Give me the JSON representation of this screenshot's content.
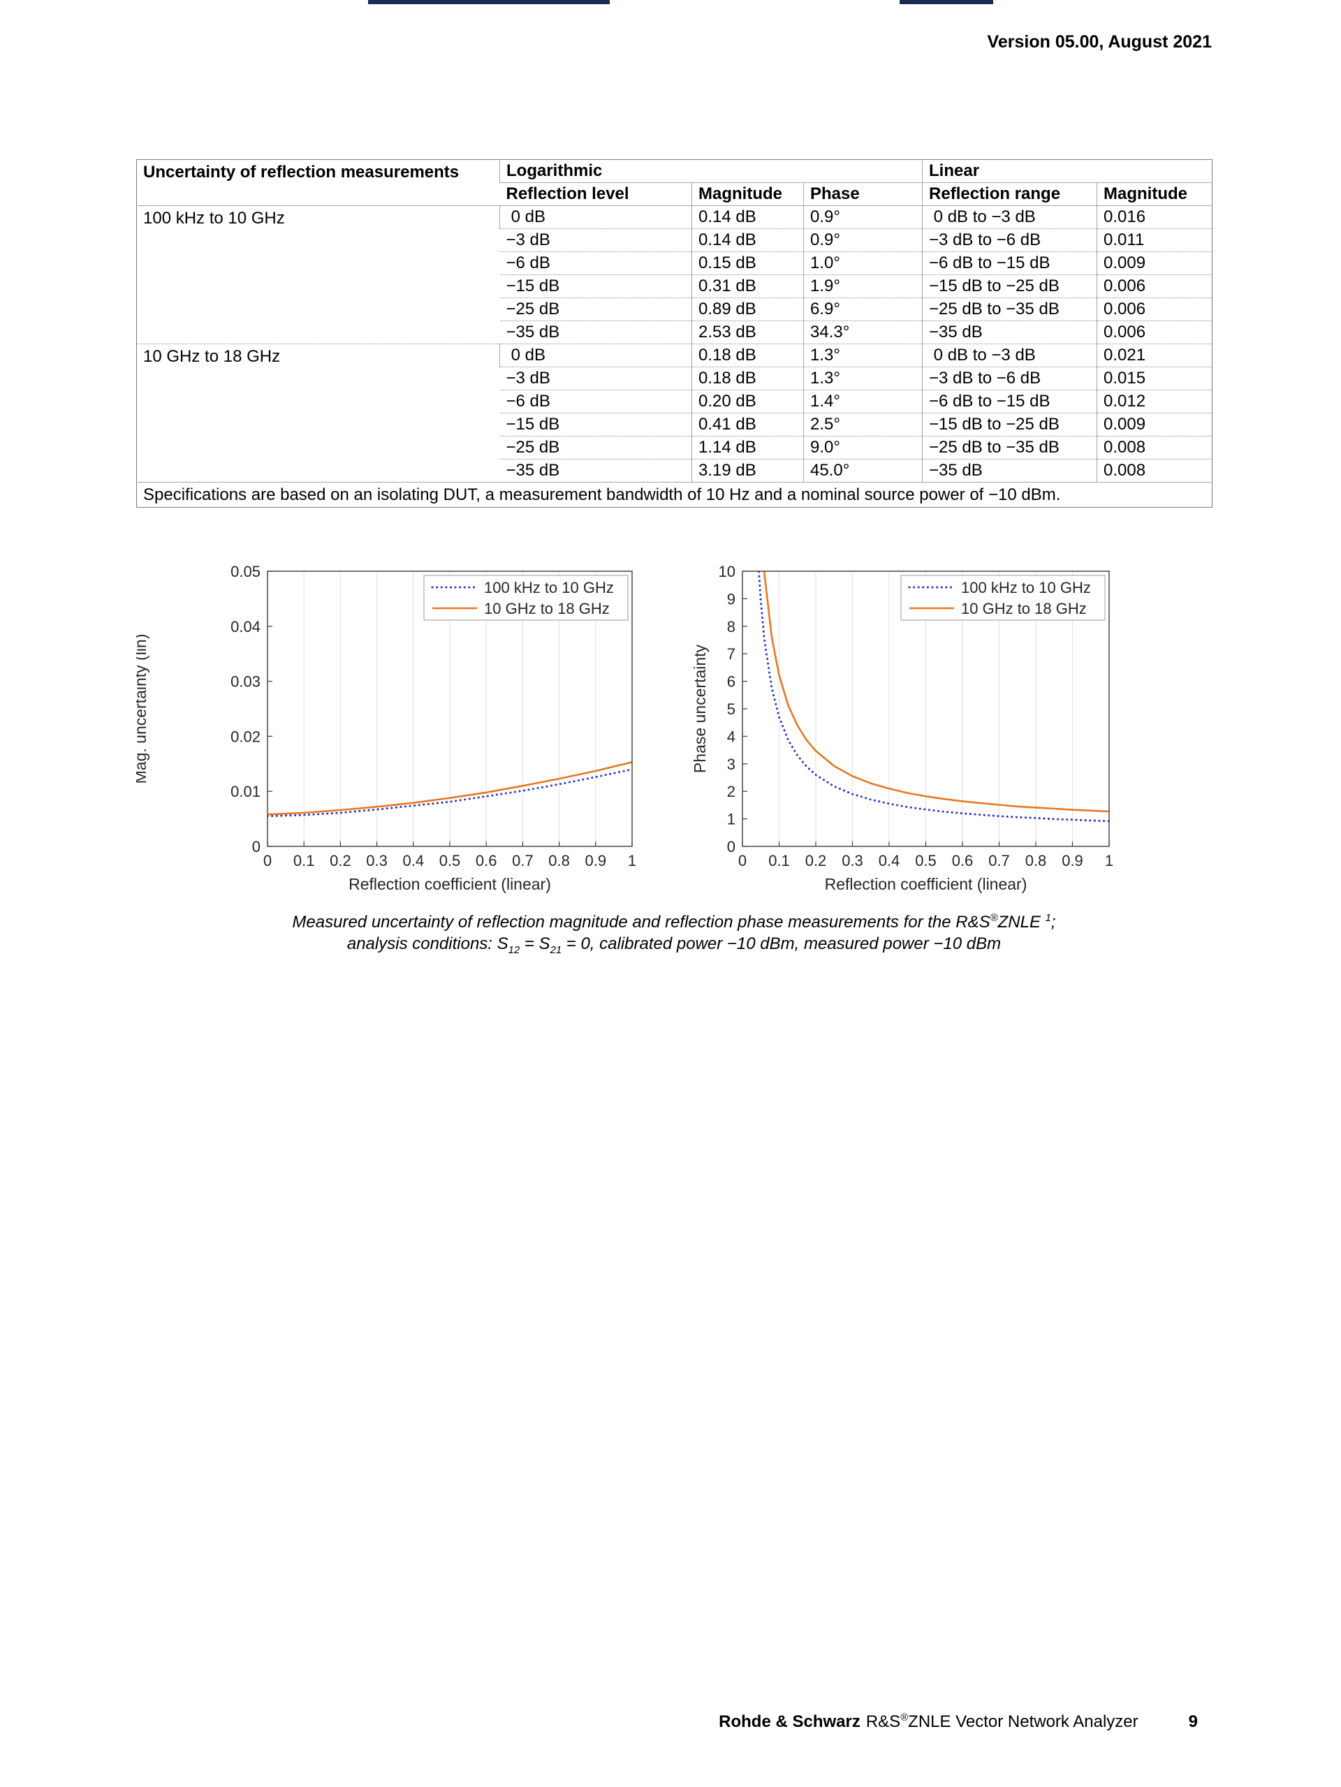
{
  "page": {
    "version_line": "Version 05.00, August 2021",
    "header_bar_color": "#1b2a52",
    "footer": {
      "brand": "Rohde & Schwarz",
      "product_prefix": "R&S",
      "registered_mark": "®",
      "product_suffix": "ZNLE Vector Network Analyzer",
      "page_number": "9"
    }
  },
  "table": {
    "title": "Uncertainty of reflection measurements",
    "section_logarithmic": "Logarithmic",
    "section_linear": "Linear",
    "columns": [
      "Reflection level",
      "Magnitude",
      "Phase",
      "Reflection range",
      "Magnitude"
    ],
    "groups": [
      {
        "label": "100 kHz to 10 GHz",
        "rows": [
          [
            " 0 dB",
            "0.14 dB",
            "0.9°",
            " 0 dB to −3 dB",
            "0.016"
          ],
          [
            "−3 dB",
            "0.14 dB",
            "0.9°",
            "−3 dB to −6 dB",
            "0.011"
          ],
          [
            "−6 dB",
            "0.15 dB",
            "1.0°",
            "−6 dB to −15 dB",
            "0.009"
          ],
          [
            "−15 dB",
            "0.31 dB",
            "1.9°",
            "−15 dB to −25 dB",
            "0.006"
          ],
          [
            "−25 dB",
            "0.89 dB",
            "6.9°",
            "−25 dB to −35 dB",
            "0.006"
          ],
          [
            "−35 dB",
            "2.53 dB",
            "34.3°",
            "−35 dB",
            "0.006"
          ]
        ]
      },
      {
        "label": "10 GHz to 18 GHz",
        "rows": [
          [
            " 0 dB",
            "0.18 dB",
            "1.3°",
            " 0 dB to −3 dB",
            "0.021"
          ],
          [
            "−3 dB",
            "0.18 dB",
            "1.3°",
            "−3 dB to −6 dB",
            "0.015"
          ],
          [
            "−6 dB",
            "0.20 dB",
            "1.4°",
            "−6 dB to −15 dB",
            "0.012"
          ],
          [
            "−15 dB",
            "0.41 dB",
            "2.5°",
            "−15 dB to −25 dB",
            "0.009"
          ],
          [
            "−25 dB",
            "1.14 dB",
            "9.0°",
            "−25 dB to −35 dB",
            "0.008"
          ],
          [
            "−35 dB",
            "3.19 dB",
            "45.0°",
            "−35 dB",
            "0.008"
          ]
        ]
      }
    ],
    "footnote": "Specifications are based on an isolating DUT, a measurement bandwidth of 10 Hz and a nominal source power of −10 dBm."
  },
  "caption": {
    "l1a": "Measured uncertainty of reflection magnitude and reflection phase measurements for the R&S",
    "l1_reg": "®",
    "l1b": "ZNLE ",
    "l1_sup": "1",
    "l1c": ";",
    "l2a": "analysis conditions: S",
    "l2_sub1": "12",
    "l2b": " = S",
    "l2_sub2": "21",
    "l2c": " = 0, calibrated power −10 dBm, measured power −10 dBm"
  },
  "chart_data": [
    {
      "type": "line",
      "title": "",
      "xlabel": "Reflection coefficient (linear)",
      "ylabel": "Mag. uncertainty (lin)",
      "xlim": [
        0,
        1
      ],
      "ylim": [
        0,
        0.05
      ],
      "xticks": [
        0,
        0.1,
        0.2,
        0.3,
        0.4,
        0.5,
        0.6,
        0.7,
        0.8,
        0.9,
        1
      ],
      "xtick_labels": [
        "0",
        "0.1",
        "0.2",
        "0.3",
        "0.4",
        "0.5",
        "0.6",
        "0.7",
        "0.8",
        "0.9",
        "1"
      ],
      "yticks": [
        0,
        0.01,
        0.02,
        0.03,
        0.04,
        0.05
      ],
      "ytick_labels": [
        "0",
        "0.01",
        "0.02",
        "0.03",
        "0.04",
        "0.05"
      ],
      "grid": "vertical",
      "legend_position": "top-right",
      "series": [
        {
          "name": "100 kHz to 10 GHz",
          "color": "#2430c8",
          "line_style": "dotted",
          "x": [
            0,
            0.1,
            0.2,
            0.3,
            0.4,
            0.5,
            0.6,
            0.7,
            0.8,
            0.9,
            1.0
          ],
          "y": [
            0.0055,
            0.0057,
            0.0061,
            0.0067,
            0.0074,
            0.0081,
            0.0091,
            0.0101,
            0.0113,
            0.0126,
            0.014
          ]
        },
        {
          "name": "10 GHz to 18 GHz",
          "color": "#e87722",
          "line_style": "solid",
          "x": [
            0,
            0.1,
            0.2,
            0.3,
            0.4,
            0.5,
            0.6,
            0.7,
            0.8,
            0.9,
            1.0
          ],
          "y": [
            0.0058,
            0.0061,
            0.0066,
            0.0072,
            0.0079,
            0.0088,
            0.0098,
            0.011,
            0.0123,
            0.0137,
            0.0153
          ]
        }
      ]
    },
    {
      "type": "line",
      "title": "",
      "xlabel": "Reflection coefficient (linear)",
      "ylabel": "Phase uncertainty",
      "xlim": [
        0,
        1
      ],
      "ylim": [
        0,
        10
      ],
      "xticks": [
        0,
        0.1,
        0.2,
        0.3,
        0.4,
        0.5,
        0.6,
        0.7,
        0.8,
        0.9,
        1
      ],
      "xtick_labels": [
        "0",
        "0.1",
        "0.2",
        "0.3",
        "0.4",
        "0.5",
        "0.6",
        "0.7",
        "0.8",
        "0.9",
        "1"
      ],
      "yticks": [
        0,
        1,
        2,
        3,
        4,
        5,
        6,
        7,
        8,
        9,
        10
      ],
      "ytick_labels": [
        "0",
        "1",
        "2",
        "3",
        "4",
        "5",
        "6",
        "7",
        "8",
        "9",
        "10"
      ],
      "grid": "vertical",
      "legend_position": "top-right",
      "series": [
        {
          "name": "100 kHz to 10 GHz",
          "color": "#2430c8",
          "line_style": "dotted",
          "x": [
            0.03,
            0.04,
            0.05,
            0.06,
            0.08,
            0.1,
            0.125,
            0.15,
            0.175,
            0.2,
            0.25,
            0.3,
            0.35,
            0.4,
            0.45,
            0.5,
            0.55,
            0.6,
            0.65,
            0.7,
            0.75,
            0.8,
            0.85,
            0.9,
            0.95,
            1.0
          ],
          "y": [
            14.5,
            11.0,
            8.9,
            7.5,
            5.75,
            4.7,
            3.86,
            3.3,
            2.9,
            2.6,
            2.18,
            1.9,
            1.7,
            1.55,
            1.43,
            1.34,
            1.26,
            1.2,
            1.15,
            1.1,
            1.06,
            1.03,
            0.99,
            0.97,
            0.94,
            0.92
          ]
        },
        {
          "name": "10 GHz to 18 GHz",
          "color": "#e87722",
          "line_style": "solid",
          "x": [
            0.03,
            0.04,
            0.05,
            0.06,
            0.08,
            0.1,
            0.125,
            0.15,
            0.175,
            0.2,
            0.25,
            0.3,
            0.35,
            0.4,
            0.45,
            0.5,
            0.55,
            0.6,
            0.65,
            0.7,
            0.75,
            0.8,
            0.85,
            0.9,
            0.95,
            1.0
          ],
          "y": [
            19.0,
            14.5,
            11.7,
            9.9,
            7.6,
            6.22,
            5.12,
            4.39,
            3.86,
            3.47,
            2.92,
            2.55,
            2.29,
            2.1,
            1.94,
            1.82,
            1.72,
            1.64,
            1.57,
            1.51,
            1.45,
            1.41,
            1.37,
            1.33,
            1.3,
            1.27
          ]
        }
      ]
    }
  ]
}
